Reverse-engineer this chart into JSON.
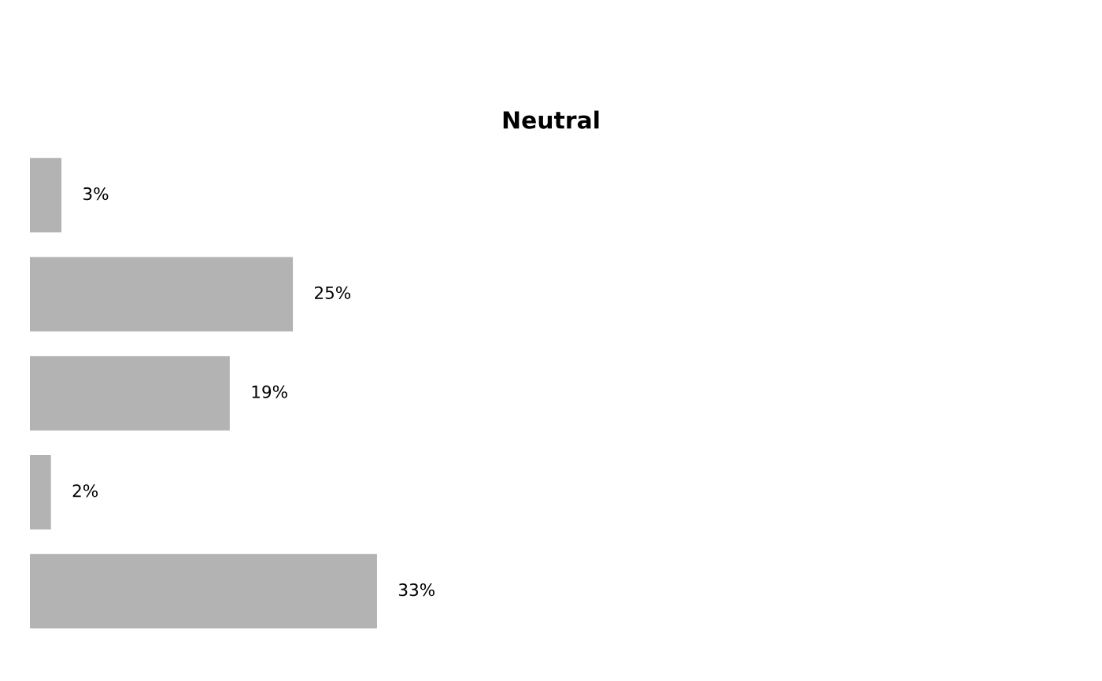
{
  "chart_data": {
    "type": "bar",
    "orientation": "horizontal",
    "title": "Neutral",
    "categories": [
      null,
      null,
      null,
      null,
      null
    ],
    "values": [
      3,
      25,
      19,
      2,
      33
    ],
    "value_labels": [
      "3%",
      "25%",
      "19%",
      "2%",
      "33%"
    ],
    "color": "#b3b3b3",
    "tick_labels": false,
    "grid": false,
    "legend": false
  }
}
